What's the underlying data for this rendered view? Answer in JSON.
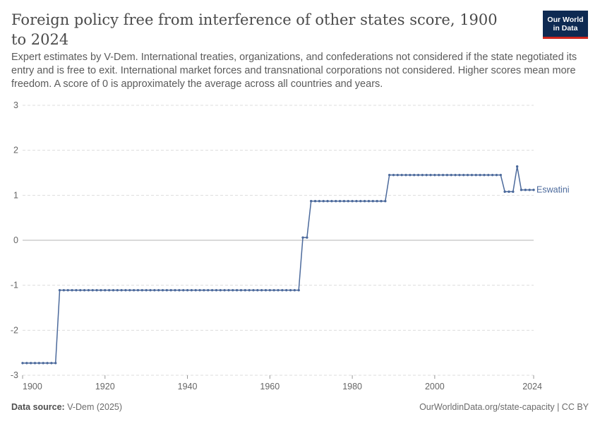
{
  "logo": {
    "line1": "Our World",
    "line2": "in Data"
  },
  "footer": {
    "source_label": "Data source:",
    "source_value": "V-Dem (2025)",
    "right": "OurWorldinData.org/state-capacity | CC BY"
  },
  "colors": {
    "series": "#4c6a9c",
    "grid": "#dddddd",
    "zero": "#b5b5b5",
    "tick_text": "#666666"
  },
  "chart_data": {
    "type": "line",
    "title": "Foreign policy free from interference of other states score, 1900 to 2024",
    "subtitle": "Expert estimates by V-Dem. International treaties, organizations, and confederations not considered if the state negotiated its entry and is free to exit. International market forces and transnational corporations not considered. Higher scores mean more freedom. A score of 0 is approximately the average across all countries and years.",
    "xlabel": "",
    "ylabel": "",
    "xlim": [
      1900,
      2024
    ],
    "ylim": [
      -3,
      3
    ],
    "x_ticks": [
      1900,
      1920,
      1940,
      1960,
      1980,
      2000,
      2024
    ],
    "y_ticks": [
      3,
      2,
      1,
      0,
      -1,
      -2,
      -3
    ],
    "grid": true,
    "series": [
      {
        "name": "Eswatini",
        "segments": [
          {
            "from": 1900,
            "to": 1908,
            "value": -2.73
          },
          {
            "from": 1909,
            "to": 1967,
            "value": -1.11
          },
          {
            "from": 1968,
            "to": 1969,
            "value": 0.06
          },
          {
            "from": 1970,
            "to": 1988,
            "value": 0.87
          },
          {
            "from": 1989,
            "to": 2016,
            "value": 1.45
          },
          {
            "from": 2017,
            "to": 2019,
            "value": 1.08
          },
          {
            "from": 2020,
            "to": 2020,
            "value": 1.64
          },
          {
            "from": 2021,
            "to": 2024,
            "value": 1.12
          }
        ]
      }
    ]
  }
}
